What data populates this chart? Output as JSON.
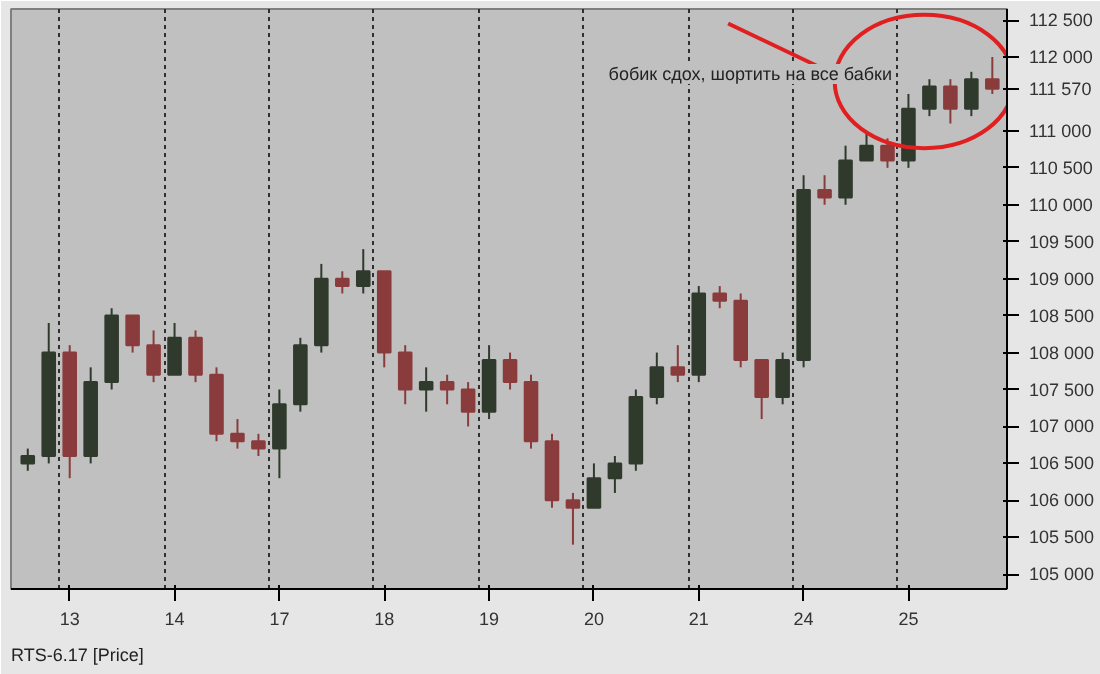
{
  "chart_data": {
    "type": "candlestick",
    "annotations": [
      "бобик сдох, шортить на все бабки",
      "RTS-6.17 [Price]"
    ],
    "categories": [
      null,
      null,
      "13",
      null,
      null,
      null,
      null,
      "14",
      null,
      null,
      null,
      null,
      "17",
      null,
      null,
      null,
      null,
      "18",
      null,
      null,
      null,
      null,
      "19",
      null,
      null,
      null,
      null,
      "20",
      null,
      null,
      null,
      null,
      "21",
      null,
      null,
      null,
      null,
      "24",
      null,
      null,
      null,
      null,
      "25",
      null,
      null,
      null,
      null
    ],
    "ohlc": [
      [
        106500,
        106700,
        106400,
        106600
      ],
      [
        106600,
        108400,
        106500,
        108000
      ],
      [
        108000,
        108100,
        106300,
        106600
      ],
      [
        106600,
        107800,
        106500,
        107600
      ],
      [
        107600,
        108600,
        107500,
        108500
      ],
      [
        108500,
        108500,
        108000,
        108100
      ],
      [
        108100,
        108300,
        107600,
        107700
      ],
      [
        107700,
        108400,
        107700,
        108200
      ],
      [
        108200,
        108300,
        107600,
        107700
      ],
      [
        107700,
        107800,
        106800,
        106900
      ],
      [
        106900,
        107100,
        106700,
        106800
      ],
      [
        106800,
        106900,
        106600,
        106700
      ],
      [
        106700,
        107500,
        106300,
        107300
      ],
      [
        107300,
        108200,
        107200,
        108100
      ],
      [
        108100,
        109200,
        108000,
        109000
      ],
      [
        109000,
        109100,
        108800,
        108900
      ],
      [
        108900,
        109400,
        108800,
        109100
      ],
      [
        109100,
        109100,
        107800,
        108000
      ],
      [
        108000,
        108100,
        107300,
        107500
      ],
      [
        107500,
        107800,
        107200,
        107600
      ],
      [
        107600,
        107700,
        107300,
        107500
      ],
      [
        107500,
        107600,
        107000,
        107200
      ],
      [
        107200,
        108100,
        107100,
        107900
      ],
      [
        107900,
        108000,
        107500,
        107600
      ],
      [
        107600,
        107700,
        106700,
        106800
      ],
      [
        106800,
        106900,
        105900,
        106000
      ],
      [
        106000,
        106100,
        105400,
        105900
      ],
      [
        105900,
        106500,
        105900,
        106300
      ],
      [
        106300,
        106600,
        106100,
        106500
      ],
      [
        106500,
        107500,
        106400,
        107400
      ],
      [
        107400,
        108000,
        107300,
        107800
      ],
      [
        107800,
        108100,
        107600,
        107700
      ],
      [
        107700,
        108900,
        107600,
        108800
      ],
      [
        108800,
        108900,
        108600,
        108700
      ],
      [
        108700,
        108800,
        107800,
        107900
      ],
      [
        107900,
        107900,
        107100,
        107400
      ],
      [
        107400,
        108000,
        107300,
        107900
      ],
      [
        107900,
        110400,
        107800,
        110200
      ],
      [
        110200,
        110400,
        110000,
        110100
      ],
      [
        110100,
        110800,
        110000,
        110600
      ],
      [
        110600,
        111000,
        110600,
        110800
      ],
      [
        110800,
        110900,
        110500,
        110600
      ],
      [
        110600,
        111500,
        110500,
        111300
      ],
      [
        111300,
        111700,
        111200,
        111600
      ],
      [
        111600,
        111700,
        111100,
        111300
      ],
      [
        111300,
        111800,
        111200,
        111700
      ],
      [
        111700,
        112000,
        111500,
        111570
      ]
    ],
    "colors": [
      "#2f3a2c",
      "#2f3a2c",
      "#8a3b3b",
      "#2f3a2c",
      "#2f3a2c",
      "#8a3b3b",
      "#8a3b3b",
      "#2f3a2c",
      "#8a3b3b",
      "#8a3b3b",
      "#8a3b3b",
      "#8a3b3b",
      "#2f3a2c",
      "#2f3a2c",
      "#2f3a2c",
      "#8a3b3b",
      "#2f3a2c",
      "#8a3b3b",
      "#8a3b3b",
      "#2f3a2c",
      "#8a3b3b",
      "#8a3b3b",
      "#2f3a2c",
      "#8a3b3b",
      "#8a3b3b",
      "#8a3b3b",
      "#8a3b3b",
      "#2f3a2c",
      "#2f3a2c",
      "#2f3a2c",
      "#2f3a2c",
      "#8a3b3b",
      "#2f3a2c",
      "#8a3b3b",
      "#8a3b3b",
      "#8a3b3b",
      "#2f3a2c",
      "#2f3a2c",
      "#8a3b3b",
      "#2f3a2c",
      "#2f3a2c",
      "#8a3b3b",
      "#2f3a2c",
      "#2f3a2c",
      "#8a3b3b",
      "#2f3a2c",
      "#8a3b3b"
    ],
    "ylim": [
      104800,
      112650
    ],
    "yticks": [
      {
        "value": 105000,
        "label": "105 000"
      },
      {
        "value": 105500,
        "label": "105 500"
      },
      {
        "value": 106000,
        "label": "106 000"
      },
      {
        "value": 106500,
        "label": "106 500"
      },
      {
        "value": 107000,
        "label": "107 000"
      },
      {
        "value": 107500,
        "label": "107 500"
      },
      {
        "value": 108000,
        "label": "108 000"
      },
      {
        "value": 108500,
        "label": "108 500"
      },
      {
        "value": 109000,
        "label": "109 000"
      },
      {
        "value": 109500,
        "label": "109 500"
      },
      {
        "value": 110000,
        "label": "110 000"
      },
      {
        "value": 110500,
        "label": "110 500"
      },
      {
        "value": 111000,
        "label": "111 000"
      },
      {
        "value": 111570,
        "label": "111 570"
      },
      {
        "value": 112000,
        "label": "112 000"
      },
      {
        "value": 112500,
        "label": "112 500"
      }
    ],
    "grid": "x"
  }
}
